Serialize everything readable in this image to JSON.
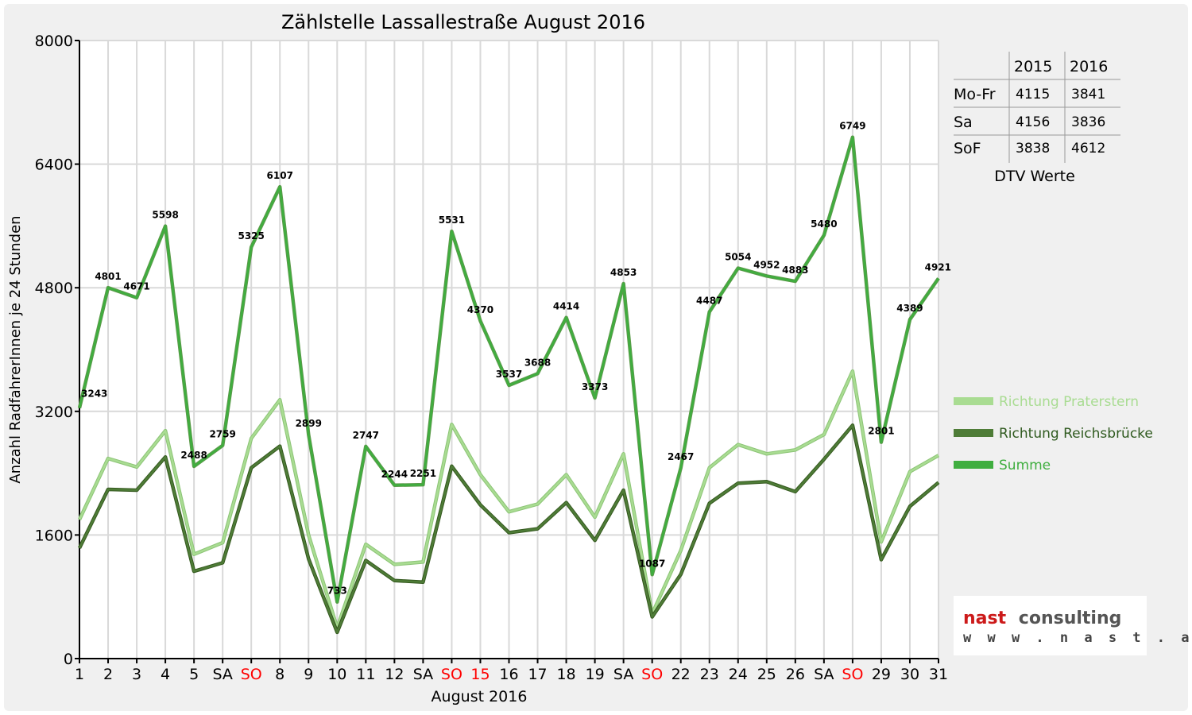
{
  "chart_data": {
    "type": "line",
    "title": "Zählstelle Lassallestraße August 2016",
    "xlabel": "August 2016",
    "ylabel": "Anzahl RadfahrerInnen je 24 Stunden",
    "ylim": [
      0,
      8000
    ],
    "yticks": [
      0,
      1600,
      3200,
      4800,
      6400,
      8000
    ],
    "grid": true,
    "legend_position": "right",
    "x": [
      1,
      2,
      3,
      4,
      5,
      6,
      7,
      8,
      9,
      10,
      11,
      12,
      13,
      14,
      15,
      16,
      17,
      18,
      19,
      20,
      21,
      22,
      23,
      24,
      25,
      26,
      27,
      28,
      29,
      30,
      31
    ],
    "xtick_labels": [
      "1",
      "2",
      "3",
      "4",
      "5",
      "SA",
      "SO",
      "8",
      "9",
      "10",
      "11",
      "12",
      "SA",
      "SO",
      "15",
      "16",
      "17",
      "18",
      "19",
      "SA",
      "SO",
      "22",
      "23",
      "24",
      "25",
      "26",
      "SA",
      "SO",
      "29",
      "30",
      "31"
    ],
    "xtick_red": [
      false,
      false,
      false,
      false,
      false,
      false,
      true,
      false,
      false,
      false,
      false,
      false,
      false,
      true,
      true,
      false,
      false,
      false,
      false,
      false,
      true,
      false,
      false,
      false,
      false,
      false,
      false,
      true,
      false,
      false,
      false
    ],
    "series": [
      {
        "name": "Richtung Praterstern",
        "color": "#a9dc92",
        "values": [
          1800,
          2590,
          2480,
          2950,
          1350,
          1500,
          2850,
          3350,
          1600,
          400,
          1480,
          1220,
          1250,
          3030,
          2380,
          1900,
          2000,
          2380,
          1830,
          2650,
          580,
          1400,
          2470,
          2770,
          2650,
          2700,
          2900,
          3720,
          1510,
          2420,
          2630
        ]
      },
      {
        "name": "Richtung Reichsbrücke",
        "color": "#4e7c37",
        "values": [
          1430,
          2190,
          2180,
          2610,
          1130,
          1240,
          2470,
          2750,
          1290,
          340,
          1270,
          1010,
          990,
          2490,
          1990,
          1630,
          1680,
          2020,
          1530,
          2180,
          540,
          1090,
          2010,
          2270,
          2290,
          2160,
          2580,
          3020,
          1280,
          1970,
          2280
        ]
      },
      {
        "name": "Summe",
        "color": "#3fae3f",
        "values": [
          3243,
          4801,
          4671,
          5598,
          2488,
          2759,
          5325,
          6107,
          2899,
          733,
          2747,
          2244,
          2251,
          5531,
          4370,
          3537,
          3688,
          4414,
          3373,
          4853,
          1087,
          2467,
          4487,
          5054,
          4952,
          4883,
          5480,
          6749,
          2801,
          4389,
          4921
        ]
      }
    ],
    "data_labels": [
      "3243",
      "4801",
      "4671",
      "5598",
      "2488",
      "2759",
      "5325",
      "6107",
      "2899",
      "733",
      "2747",
      "2244",
      "2251",
      "5531",
      "4370",
      "3537",
      "3688",
      "4414",
      "3373",
      "4853",
      "1087",
      "2467",
      "4487",
      "5054",
      "4952",
      "4883",
      "5480",
      "6749",
      "2801",
      "4389",
      "4921"
    ]
  },
  "dtv_table": {
    "headers": [
      "",
      "2015",
      "2016"
    ],
    "rows": [
      {
        "label": "Mo-Fr",
        "v2015": "4115",
        "v2016": "3841"
      },
      {
        "label": "Sa",
        "v2015": "4156",
        "v2016": "3836"
      },
      {
        "label": "SoF",
        "v2015": "3838",
        "v2016": "4612"
      }
    ],
    "caption": "DTV Werte"
  },
  "logo": {
    "word1": "nast",
    "word2": "consulting",
    "url": "w w w . n a s t . a t",
    "color_word1": "#cc1a1a",
    "color_word2": "#555555"
  },
  "colors": {
    "sunday_label": "#ff0000",
    "grid": "#d9d9d9",
    "background": "#f0f0f0"
  }
}
